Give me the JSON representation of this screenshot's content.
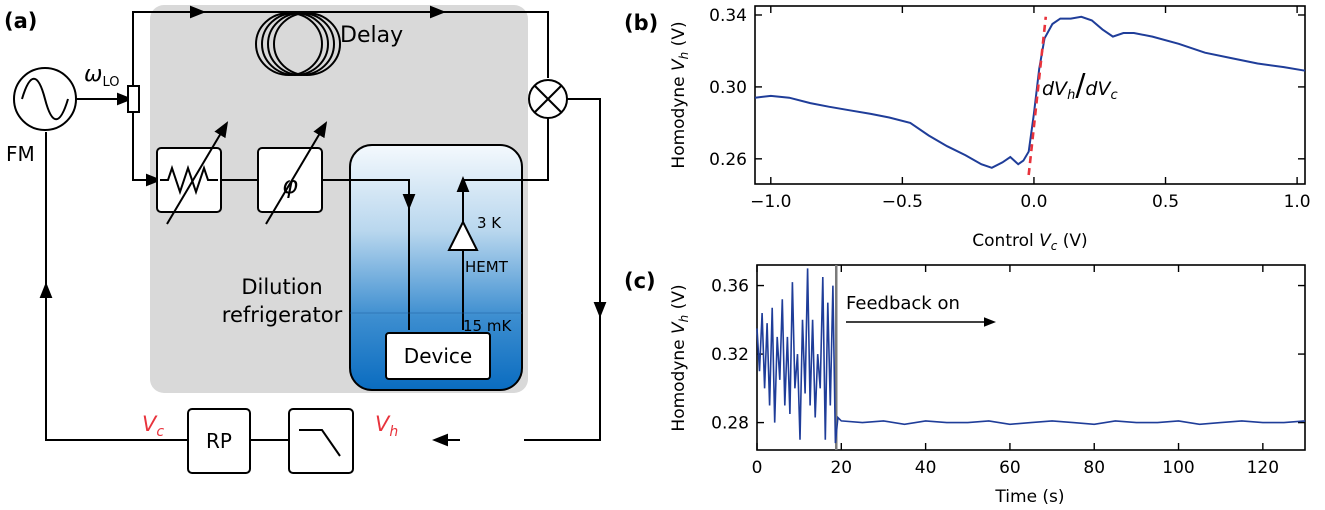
{
  "panel_labels": {
    "a": "(a)",
    "b": "(b)",
    "c": "(c)"
  },
  "schematic": {
    "source_label": "FM",
    "lo_label": "ω",
    "lo_sub": "LO",
    "delay_label": "Delay",
    "fridge_label_line1": "Dilution",
    "fridge_label_line2": "refrigerator",
    "stage_3k": "3 K",
    "stage_15mk": "15 mK",
    "amp_label": "HEMT",
    "device_label": "Device",
    "rp_label": "RP",
    "phase_symbol": "φ",
    "vc_label": "V",
    "vc_sub": "c",
    "vh_label": "V",
    "vh_sub": "h"
  },
  "colors": {
    "trace": "#1f3d99",
    "fit": "#e8333c",
    "fridge_gray": "#d9d9d9",
    "cryostat_top": "#f4f9fd",
    "cryostat_bottom": "#0a6cc0",
    "feedback_marker": "#7a7a7a"
  },
  "chart_data": [
    {
      "id": "b",
      "type": "line",
      "xlabel": "Control V_c (V)",
      "ylabel": "Homodyne V_h (V)",
      "xlim": [
        -1.06,
        1.03
      ],
      "ylim": [
        0.246,
        0.345
      ],
      "xticks": [
        -1.0,
        -0.5,
        0.0,
        0.5,
        1.0
      ],
      "xtick_labels": [
        "−1.0",
        "−0.5",
        "0.0",
        "0.5",
        "1.0"
      ],
      "yticks": [
        0.26,
        0.3,
        0.34
      ],
      "ytick_labels": [
        "0.26",
        "0.30",
        "0.34"
      ],
      "annotation": "dV_h/dV_c",
      "series": [
        {
          "x": [
            -1.06,
            -1.0,
            -0.93,
            -0.85,
            -0.78,
            -0.7,
            -0.62,
            -0.55,
            -0.47,
            -0.4,
            -0.33,
            -0.26,
            -0.2,
            -0.16,
            -0.12,
            -0.09,
            -0.06,
            -0.04,
            -0.02,
            0.0,
            0.02,
            0.04,
            0.07,
            0.1,
            0.14,
            0.18,
            0.22,
            0.26,
            0.3,
            0.34,
            0.38,
            0.45,
            0.55,
            0.65,
            0.75,
            0.85,
            0.95,
            1.03
          ],
          "y": [
            0.294,
            0.295,
            0.294,
            0.291,
            0.289,
            0.287,
            0.285,
            0.283,
            0.28,
            0.273,
            0.267,
            0.262,
            0.257,
            0.255,
            0.258,
            0.261,
            0.257,
            0.259,
            0.264,
            0.285,
            0.31,
            0.327,
            0.335,
            0.338,
            0.338,
            0.339,
            0.337,
            0.332,
            0.328,
            0.33,
            0.33,
            0.328,
            0.324,
            0.319,
            0.316,
            0.313,
            0.311,
            0.309
          ]
        }
      ],
      "fit": {
        "x": [
          -0.02,
          0.045
        ],
        "y": [
          0.251,
          0.339
        ]
      }
    },
    {
      "id": "c",
      "type": "line",
      "xlabel": "Time (s)",
      "ylabel": "Homodyne V_h (V)",
      "xlim": [
        0,
        130
      ],
      "ylim": [
        0.264,
        0.372
      ],
      "xticks": [
        0,
        20,
        40,
        60,
        80,
        100,
        120
      ],
      "xtick_labels": [
        "0",
        "20",
        "40",
        "60",
        "80",
        "100",
        "120"
      ],
      "yticks": [
        0.28,
        0.32,
        0.36
      ],
      "ytick_labels": [
        "0.28",
        "0.32",
        "0.36"
      ],
      "annotation": "Feedback on",
      "feedback_on_time": 18.8,
      "series": [
        {
          "x": [
            0,
            0.6,
            1.2,
            1.8,
            2.4,
            3.0,
            3.6,
            4.2,
            4.8,
            5.4,
            6.0,
            6.6,
            7.2,
            7.8,
            8.4,
            9.0,
            9.6,
            10.2,
            10.8,
            11.4,
            12.0,
            12.6,
            13.2,
            13.8,
            14.4,
            15.0,
            15.6,
            16.2,
            16.8,
            17.4,
            18.0,
            18.6,
            19.2,
            20,
            25,
            30,
            35,
            40,
            45,
            50,
            55,
            60,
            65,
            70,
            75,
            80,
            85,
            90,
            95,
            100,
            105,
            110,
            115,
            120,
            125,
            130
          ],
          "y": [
            0.335,
            0.31,
            0.344,
            0.3,
            0.338,
            0.29,
            0.347,
            0.28,
            0.33,
            0.305,
            0.352,
            0.29,
            0.33,
            0.285,
            0.362,
            0.3,
            0.32,
            0.27,
            0.34,
            0.297,
            0.37,
            0.29,
            0.34,
            0.283,
            0.32,
            0.3,
            0.365,
            0.27,
            0.35,
            0.29,
            0.36,
            0.268,
            0.283,
            0.281,
            0.28,
            0.281,
            0.279,
            0.281,
            0.28,
            0.28,
            0.281,
            0.279,
            0.28,
            0.281,
            0.28,
            0.279,
            0.281,
            0.28,
            0.28,
            0.281,
            0.279,
            0.28,
            0.281,
            0.28,
            0.28,
            0.281
          ]
        }
      ]
    }
  ]
}
